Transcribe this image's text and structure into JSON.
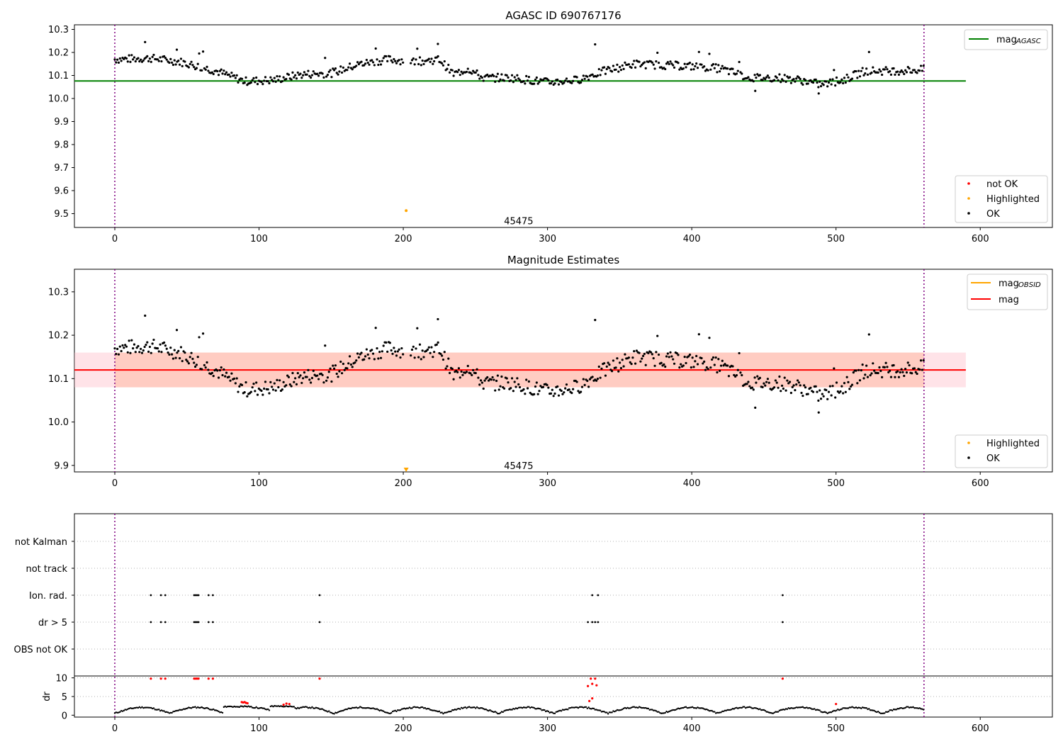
{
  "chart_data": [
    {
      "type": "scatter",
      "title": "AGASC ID 690767176",
      "xlim": [
        -28,
        650
      ],
      "ylim": [
        9.44,
        10.32
      ],
      "x_ticks": [
        0,
        100,
        200,
        300,
        400,
        500,
        600
      ],
      "y_ticks": [
        {
          "v": 9.5,
          "label": "9.5"
        },
        {
          "v": 9.6,
          "label": "9.6"
        },
        {
          "v": 9.7,
          "label": "9.7"
        },
        {
          "v": 9.8,
          "label": "9.8"
        },
        {
          "v": 9.9,
          "label": "9.9"
        },
        {
          "v": 10.0,
          "label": "10.0"
        },
        {
          "v": 10.1,
          "label": "10.1"
        },
        {
          "v": 10.2,
          "label": "10.2"
        },
        {
          "v": 10.3,
          "label": "10.3"
        }
      ],
      "vlines_x": [
        0,
        561
      ],
      "hline": {
        "y": 10.076,
        "x_range": [
          -28,
          590
        ],
        "color": "#008000"
      },
      "highlighted_points": [
        [
          202,
          9.513
        ]
      ],
      "annotation": {
        "text": "45475",
        "x": 280,
        "y": 9.47
      },
      "legend_line": {
        "label": "mag",
        "subscript": "AGASC",
        "color": "#008000"
      },
      "legend_points": [
        {
          "label": "not OK",
          "color": "#ff0000"
        },
        {
          "label": "Highlighted",
          "color": "#ffa500"
        },
        {
          "label": "OK",
          "color": "#000000"
        }
      ]
    },
    {
      "type": "scatter",
      "title": "Magnitude Estimates",
      "xlim": [
        -28,
        650
      ],
      "ylim": [
        9.885,
        10.352
      ],
      "x_ticks": [
        0,
        100,
        200,
        300,
        400,
        500,
        600
      ],
      "y_ticks": [
        {
          "v": 9.9,
          "label": "9.9"
        },
        {
          "v": 10.0,
          "label": "10.0"
        },
        {
          "v": 10.1,
          "label": "10.1"
        },
        {
          "v": 10.2,
          "label": "10.2"
        },
        {
          "v": 10.3,
          "label": "10.3"
        }
      ],
      "vlines_x": [
        0,
        561
      ],
      "mag_line": {
        "y": 10.12,
        "x_range": [
          -28,
          590
        ],
        "color": "#ff0000"
      },
      "pink_band": {
        "y": [
          10.08,
          10.16
        ],
        "x_range": [
          -28,
          590
        ],
        "color": "#ffc0cb"
      },
      "orange_band": {
        "y": [
          10.08,
          10.16
        ],
        "x_range": [
          0,
          561
        ],
        "color": "#ffa07a"
      },
      "highlighted_points": [
        [
          202,
          9.89
        ]
      ],
      "annotation": {
        "text": "45475",
        "x": 280,
        "y": 9.9
      },
      "legend_lines": [
        {
          "label": "mag",
          "subscript": "OBSID",
          "color": "#ffa500"
        },
        {
          "label": "mag",
          "subscript": "",
          "color": "#ff0000"
        }
      ],
      "legend_points": [
        {
          "label": "Highlighted",
          "color": "#ffa500"
        },
        {
          "label": "OK",
          "color": "#000000"
        }
      ]
    },
    {
      "type": "scatter",
      "title": "",
      "xlim": [
        -28,
        650
      ],
      "x_ticks": [
        0,
        100,
        200,
        300,
        400,
        500,
        600
      ],
      "flag_rows": [
        "not Kalman",
        "not track",
        "Ion. rad.",
        "dr > 5",
        "OBS not OK"
      ],
      "flags": {
        "Ion. rad.": [
          25,
          32,
          35,
          55,
          56,
          57,
          58,
          65,
          68,
          142,
          331,
          335,
          463
        ],
        "dr > 5": [
          25,
          32,
          35,
          55,
          56,
          57,
          58,
          65,
          68,
          142,
          328,
          331,
          333,
          335,
          463
        ]
      },
      "vlines_x": [
        0,
        561
      ],
      "dr": {
        "ylabel": "dr",
        "ylim": [
          -0.5,
          10.5
        ],
        "y_ticks": [
          {
            "v": 0,
            "label": "0"
          },
          {
            "v": 5,
            "label": "5"
          },
          {
            "v": 10,
            "label": "10"
          }
        ],
        "threshold": 5,
        "not_ok_points": [
          [
            25,
            9.8
          ],
          [
            32,
            9.8
          ],
          [
            35,
            9.8
          ],
          [
            55,
            9.8
          ],
          [
            56,
            9.8
          ],
          [
            57,
            9.8
          ],
          [
            58,
            9.8
          ],
          [
            65,
            9.8
          ],
          [
            68,
            9.8
          ],
          [
            142,
            9.8
          ],
          [
            330,
            9.8
          ],
          [
            333,
            9.8
          ],
          [
            328,
            7.8
          ],
          [
            331,
            8.4
          ],
          [
            334,
            8.0
          ],
          [
            329,
            3.8
          ],
          [
            331,
            4.5
          ],
          [
            463,
            9.8
          ],
          [
            88,
            3.5
          ],
          [
            89,
            3.4
          ],
          [
            90,
            3.5
          ],
          [
            91,
            3.3
          ],
          [
            92,
            3.2
          ],
          [
            117,
            2.8
          ],
          [
            119,
            3.1
          ],
          [
            121,
            3.0
          ],
          [
            500,
            3.0
          ]
        ]
      }
    }
  ]
}
